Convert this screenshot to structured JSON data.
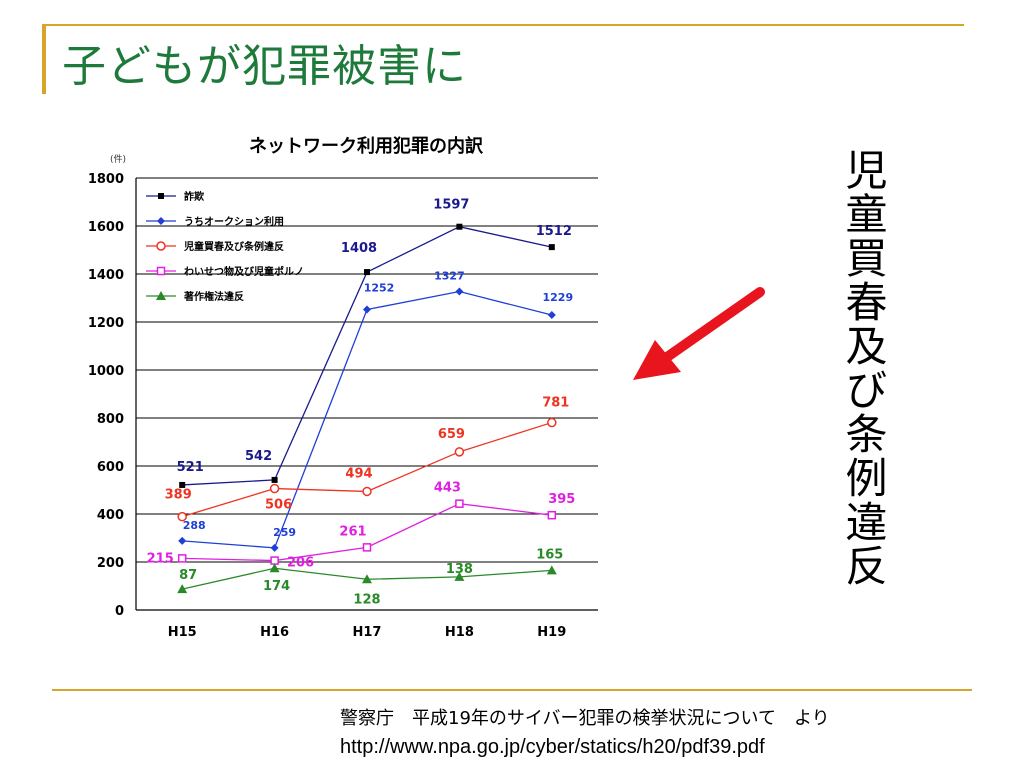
{
  "slide": {
    "title": "子どもが犯罪被害に",
    "side_label": "児童買春及び条例違反",
    "source_text": "警察庁　平成19年のサイバー犯罪の検挙状況について　より",
    "source_url": "http://www.npa.go.jp/cyber/statics/h20/pdf39.pdf"
  },
  "colors": {
    "accent": "#d9a42a",
    "title": "#1e7a3a",
    "arrow": "#e8141e"
  },
  "chart_data": {
    "type": "line",
    "title": "ネットワーク利用犯罪の内訳",
    "unit_label": "(件)",
    "categories": [
      "H15",
      "H16",
      "H17",
      "H18",
      "H19"
    ],
    "ylim": [
      0,
      1800
    ],
    "yticks": [
      0,
      200,
      400,
      600,
      800,
      1000,
      1200,
      1400,
      1600,
      1800
    ],
    "grid": true,
    "legend_position": "top-left",
    "series": [
      {
        "name": "詐欺",
        "values": [
          521,
          542,
          1408,
          1597,
          1512
        ],
        "color": "#1a1a8c",
        "marker": "square",
        "labels": [
          "521",
          "542",
          "1408",
          "1597",
          "1512"
        ]
      },
      {
        "name": "うちオークション利用",
        "values": [
          288,
          259,
          1252,
          1327,
          1229
        ],
        "color": "#1f3fd6",
        "marker": "diamond",
        "labels": [
          "288",
          "259",
          "1252",
          "1327",
          "1229"
        ]
      },
      {
        "name": "児童買春及び条例違反",
        "values": [
          389,
          506,
          494,
          659,
          781
        ],
        "color": "#ee3322",
        "marker": "circle",
        "labels": [
          "389",
          "506",
          "494",
          "659",
          "781"
        ]
      },
      {
        "name": "わいせつ物及び児童ポルノ",
        "values": [
          215,
          206,
          261,
          443,
          395
        ],
        "color": "#e020e0",
        "marker": "open-square",
        "labels": [
          "215",
          "206",
          "261",
          "443",
          "395"
        ]
      },
      {
        "name": "著作権法違反",
        "values": [
          87,
          174,
          128,
          138,
          165
        ],
        "color": "#2a8a2a",
        "marker": "triangle",
        "labels": [
          "87",
          "174",
          "128",
          "138",
          "165"
        ]
      }
    ]
  }
}
